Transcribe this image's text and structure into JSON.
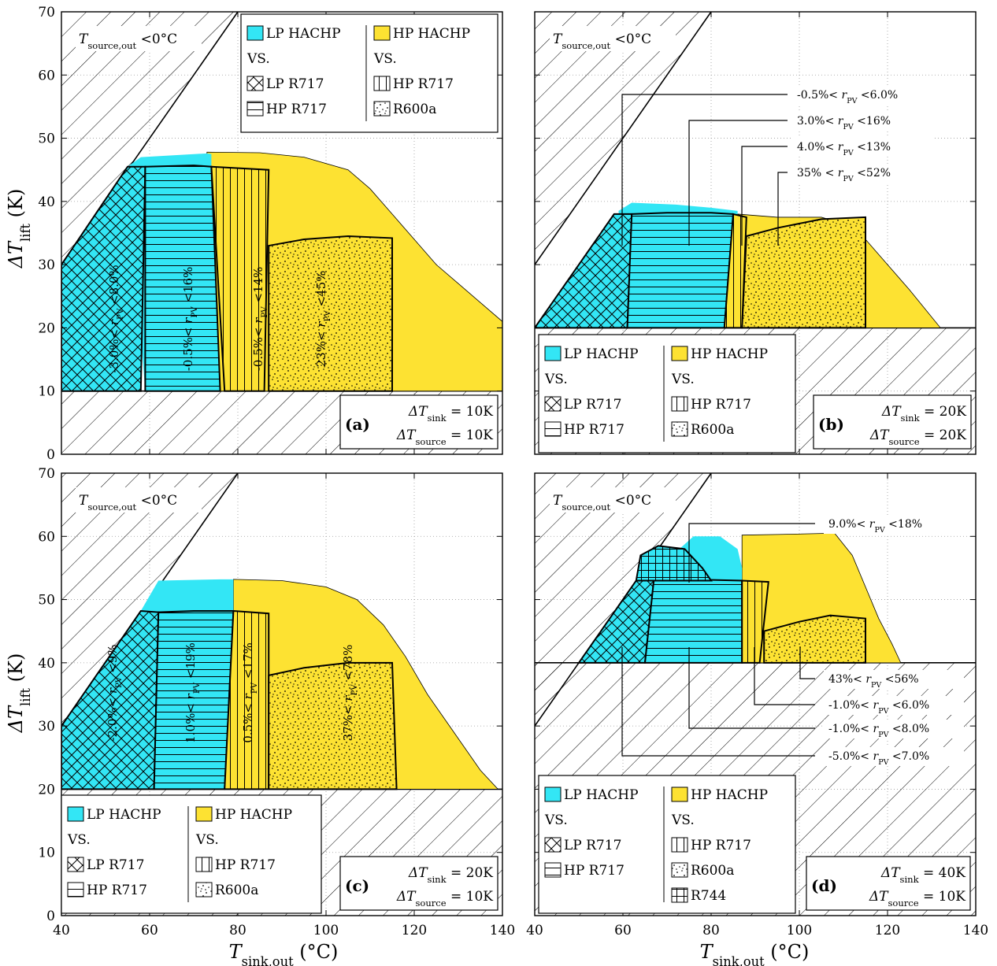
{
  "colors": {
    "lp": "#33e6f5",
    "hp": "#fde232",
    "line": "#000000",
    "grid": "#999999"
  },
  "axes": {
    "xlabel": "T_sink,out (°C)",
    "ylabel": "ΔT_lift (K)",
    "x_ticks": [
      "40",
      "60",
      "80",
      "100",
      "120",
      "140"
    ],
    "y_ticks": [
      "0",
      "10",
      "20",
      "30",
      "40",
      "50",
      "60",
      "70"
    ],
    "xlim": [
      40,
      140
    ],
    "ylim": [
      0,
      70
    ]
  },
  "zone_label": "T_source,out <0°C",
  "legend": {
    "lp_title": "LP HACHP",
    "hp_title": "HP HACHP",
    "vs": "VS.",
    "lp_items": [
      "LP R717",
      "HP R717"
    ],
    "hp_items": [
      "HP R717",
      "R600a"
    ],
    "extra_item": "R744"
  },
  "chart_data": [
    {
      "type": "area",
      "panel": "(a)",
      "conditions": [
        "ΔT_sink = 10K",
        "ΔT_source = 10K"
      ],
      "min_lift": 10,
      "hachp_lp_envelope": [
        [
          55,
          45.5
        ],
        [
          58,
          47
        ],
        [
          73,
          47.6
        ],
        [
          74,
          47.5
        ],
        [
          74,
          10
        ],
        [
          59,
          10
        ]
      ],
      "hachp_hp_envelope": [
        [
          73,
          47.8
        ],
        [
          85,
          47.7
        ],
        [
          95,
          47
        ],
        [
          105,
          45
        ],
        [
          110,
          42
        ],
        [
          115,
          38
        ],
        [
          120,
          34
        ],
        [
          125,
          30
        ],
        [
          130,
          27
        ],
        [
          135,
          24
        ],
        [
          140,
          21
        ],
        [
          140,
          10
        ],
        [
          73,
          10
        ]
      ],
      "regions": [
        {
          "name": "LP R717",
          "pattern": "cross",
          "label": "-3.0%< r_PV <8.0%",
          "outline": [
            [
              40,
              30
            ],
            [
              55,
              45.5
            ],
            [
              59,
              45.5
            ],
            [
              58,
              10
            ],
            [
              40,
              10
            ]
          ]
        },
        {
          "name": "HP R717 (LP)",
          "pattern": "horiz",
          "label": "-0.5%< r_PV <16%",
          "outline": [
            [
              59,
              45.5
            ],
            [
              70,
              45.7
            ],
            [
              74,
              45.5
            ],
            [
              76,
              10
            ],
            [
              59,
              10
            ]
          ]
        },
        {
          "name": "HP R717",
          "pattern": "vert",
          "label": "-0.5%< r_PV <14%",
          "outline": [
            [
              74,
              45.5
            ],
            [
              87,
              45
            ],
            [
              86,
              10
            ],
            [
              77,
              10
            ]
          ]
        },
        {
          "name": "R600a",
          "pattern": "dots",
          "label": "23%< r_PV <45%",
          "outline": [
            [
              87,
              33
            ],
            [
              95,
              34
            ],
            [
              105,
              34.5
            ],
            [
              115,
              34.2
            ],
            [
              115,
              10
            ],
            [
              87,
              10
            ]
          ]
        }
      ]
    },
    {
      "type": "area",
      "panel": "(b)",
      "conditions": [
        "ΔT_sink = 20K",
        "ΔT_source = 20K"
      ],
      "min_lift": 20,
      "hachp_lp_envelope": [
        [
          59,
          38.5
        ],
        [
          62,
          39.8
        ],
        [
          72,
          39.5
        ],
        [
          80,
          39
        ],
        [
          86,
          38.5
        ],
        [
          86,
          20
        ],
        [
          62,
          20
        ]
      ],
      "hachp_hp_envelope": [
        [
          86,
          38
        ],
        [
          95,
          37.5
        ],
        [
          105,
          37.5
        ],
        [
          110,
          36.5
        ],
        [
          115,
          34
        ],
        [
          120,
          30
        ],
        [
          125,
          26
        ],
        [
          132,
          20
        ],
        [
          86,
          20
        ]
      ],
      "regions": [
        {
          "name": "LP R717",
          "pattern": "cross",
          "label": "-0.5%< r_PV <6.0%",
          "outline": [
            [
              40,
              20
            ],
            [
              58,
              38
            ],
            [
              62,
              38
            ],
            [
              61,
              20
            ]
          ]
        },
        {
          "name": "HP R717 (LP)",
          "pattern": "horiz",
          "label": "3.0%< r_PV <16%",
          "outline": [
            [
              62,
              38
            ],
            [
              70,
              38.2
            ],
            [
              80,
              38.2
            ],
            [
              85,
              38
            ],
            [
              83,
              20
            ],
            [
              61,
              20
            ]
          ]
        },
        {
          "name": "HP R717",
          "pattern": "vert",
          "label": "4.0%< r_PV <13%",
          "outline": [
            [
              85,
              38
            ],
            [
              88,
              37.5
            ],
            [
              87,
              20
            ],
            [
              83,
              20
            ]
          ]
        },
        {
          "name": "R600a",
          "pattern": "dots",
          "label": "35% < r_PV <52%",
          "outline": [
            [
              88,
              34.5
            ],
            [
              95,
              35.8
            ],
            [
              105,
              37.2
            ],
            [
              115,
              37.5
            ],
            [
              115,
              20
            ],
            [
              87,
              20
            ]
          ]
        }
      ]
    },
    {
      "type": "area",
      "panel": "(c)",
      "conditions": [
        "ΔT_sink = 20K",
        "ΔT_source = 10K"
      ],
      "min_lift": 20,
      "hachp_lp_envelope": [
        [
          58,
          48.2
        ],
        [
          62,
          53
        ],
        [
          76,
          53.2
        ],
        [
          79,
          53.2
        ],
        [
          79,
          20
        ],
        [
          62,
          20
        ]
      ],
      "hachp_hp_envelope": [
        [
          79,
          53.2
        ],
        [
          90,
          53
        ],
        [
          100,
          52
        ],
        [
          107,
          50
        ],
        [
          113,
          46
        ],
        [
          118,
          41
        ],
        [
          123,
          35
        ],
        [
          128,
          30
        ],
        [
          135,
          23
        ],
        [
          139,
          20
        ],
        [
          79,
          20
        ]
      ],
      "regions": [
        {
          "name": "LP R717",
          "pattern": "cross",
          "label": "-2.0%< r_PV <9%",
          "outline": [
            [
              40,
              30
            ],
            [
              58,
              48.2
            ],
            [
              62,
              48
            ],
            [
              61,
              20
            ],
            [
              40,
              20
            ]
          ]
        },
        {
          "name": "HP R717 (LP)",
          "pattern": "horiz",
          "label": "1.0%< r_PV <19%",
          "outline": [
            [
              62,
              48
            ],
            [
              70,
              48.2
            ],
            [
              79,
              48.2
            ],
            [
              77,
              20
            ],
            [
              61,
              20
            ]
          ]
        },
        {
          "name": "HP R717",
          "pattern": "vert",
          "label": "0.5%< r_PV <17%",
          "outline": [
            [
              79,
              48.2
            ],
            [
              87,
              47.8
            ],
            [
              87,
              20
            ],
            [
              77,
              20
            ]
          ]
        },
        {
          "name": "R600a",
          "pattern": "dots",
          "label": "37%< r_PV <78%",
          "outline": [
            [
              87,
              38
            ],
            [
              95,
              39.2
            ],
            [
              105,
              40
            ],
            [
              115,
              40
            ],
            [
              116,
              20
            ],
            [
              87,
              20
            ]
          ]
        }
      ]
    },
    {
      "type": "area",
      "panel": "(d)",
      "conditions": [
        "ΔT_sink = 40K",
        "ΔT_source = 10K"
      ],
      "min_lift": 40,
      "hachp_lp_envelope": [
        [
          69,
          55
        ],
        [
          72,
          57.5
        ],
        [
          76,
          60
        ],
        [
          82,
          60
        ],
        [
          86,
          58
        ],
        [
          87,
          55
        ],
        [
          87,
          40
        ],
        [
          66,
          40
        ]
      ],
      "hachp_hp_envelope": [
        [
          87,
          53
        ],
        [
          87,
          60.2
        ],
        [
          95,
          60.3
        ],
        [
          108,
          60.5
        ],
        [
          112,
          57
        ],
        [
          115,
          52
        ],
        [
          118,
          47
        ],
        [
          121,
          43
        ],
        [
          123,
          40
        ],
        [
          87,
          40
        ]
      ],
      "regions": [
        {
          "name": "LP R717",
          "pattern": "cross",
          "label": "-5.0%< r_PV <7.0%",
          "outline": [
            [
              50,
              40
            ],
            [
              63,
              53
            ],
            [
              67,
              53
            ],
            [
              65,
              40
            ]
          ]
        },
        {
          "name": "HP R717 (LP)",
          "pattern": "horiz",
          "label": "-1.0%< r_PV <8.0%",
          "outline": [
            [
              67,
              53
            ],
            [
              75,
              53.2
            ],
            [
              87,
              53
            ],
            [
              87,
              40
            ],
            [
              65,
              40
            ]
          ]
        },
        {
          "name": "HP R717",
          "pattern": "vert",
          "label": "-1.0%< r_PV <6.0%",
          "outline": [
            [
              87,
              53
            ],
            [
              93,
              52.8
            ],
            [
              91,
              40
            ],
            [
              87,
              40
            ]
          ]
        },
        {
          "name": "R600a",
          "pattern": "dots",
          "label": "43%< r_PV <56%",
          "outline": [
            [
              92,
              45
            ],
            [
              100,
              46.5
            ],
            [
              107,
              47.5
            ],
            [
              115,
              47
            ],
            [
              115,
              40
            ],
            [
              92,
              40
            ]
          ]
        },
        {
          "name": "R744",
          "pattern": "grid",
          "label": "9.0%< r_PV <18%",
          "outline": [
            [
              63,
              53
            ],
            [
              64,
              57
            ],
            [
              68,
              58.5
            ],
            [
              74,
              58
            ],
            [
              78,
              55
            ],
            [
              80,
              53
            ]
          ]
        }
      ]
    }
  ]
}
